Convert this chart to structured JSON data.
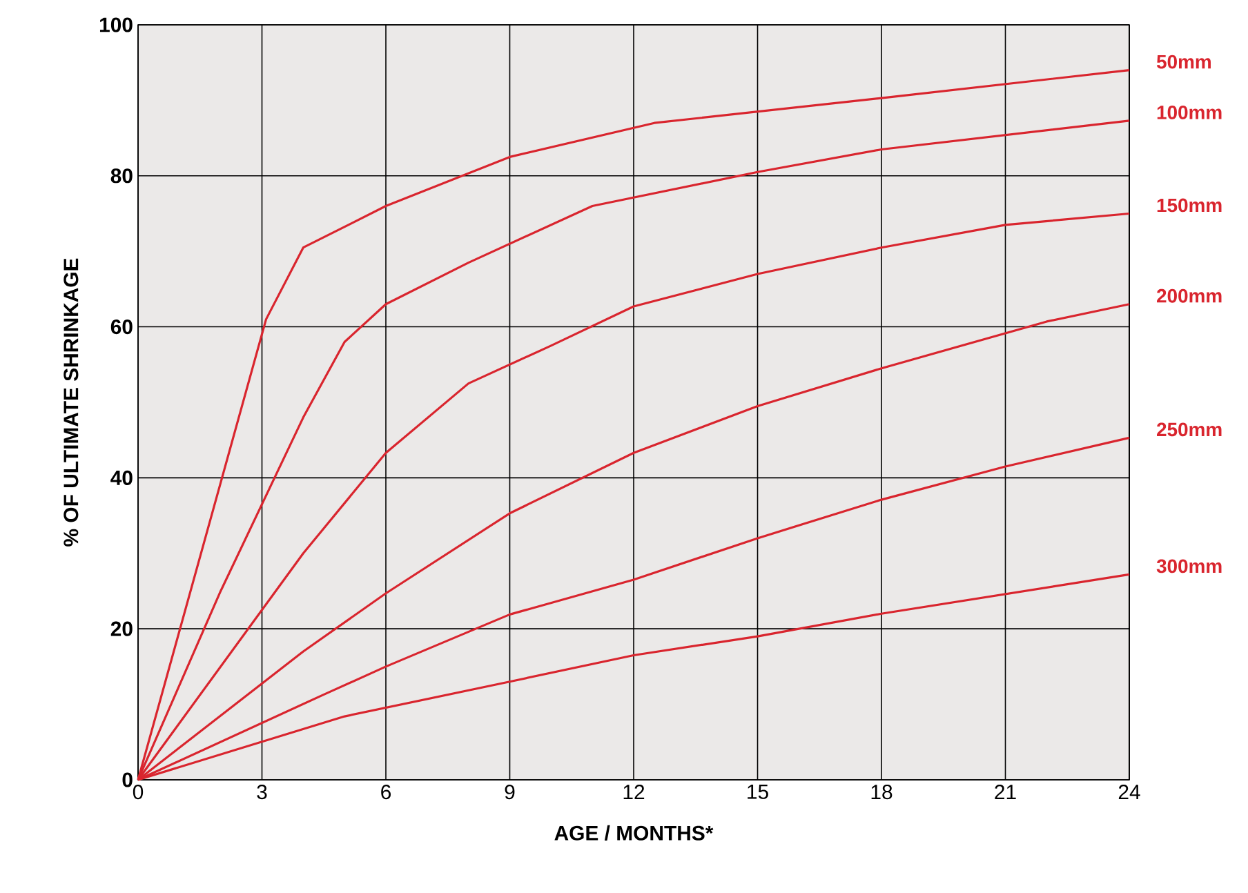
{
  "chart_data": {
    "type": "line",
    "xlabel": "AGE / MONTHS*",
    "ylabel": "% OF ULTIMATE SHRINKAGE",
    "xlim": [
      0,
      24
    ],
    "xticks": [
      0,
      3,
      6,
      9,
      12,
      15,
      18,
      21,
      24
    ],
    "ylim": [
      0,
      100
    ],
    "yticks": [
      0,
      20,
      40,
      60,
      80,
      100
    ],
    "grid": true,
    "series": [
      {
        "name": "50mm",
        "color": "#d9252e",
        "x": [
          0,
          3.1,
          4,
          6,
          9,
          12.5,
          18,
          24
        ],
        "values": [
          0,
          61,
          70.5,
          76,
          82.5,
          87,
          90.3,
          94
        ]
      },
      {
        "name": "100mm",
        "color": "#d9252e",
        "x": [
          0,
          2,
          4,
          5,
          6,
          8,
          11,
          15,
          18,
          24
        ],
        "values": [
          0,
          25,
          48,
          58,
          63,
          68.5,
          76,
          80.5,
          83.5,
          87.3
        ]
      },
      {
        "name": "150mm",
        "color": "#d9252e",
        "x": [
          0,
          4,
          6,
          8,
          10,
          12,
          15,
          18,
          21,
          24
        ],
        "values": [
          0,
          30,
          43.3,
          52.5,
          57.5,
          62.7,
          67,
          70.5,
          73.5,
          75
        ]
      },
      {
        "name": "200mm",
        "color": "#d9252e",
        "x": [
          0,
          4,
          6,
          9,
          12,
          15,
          18,
          22,
          24
        ],
        "values": [
          0,
          17,
          24.7,
          35.3,
          43.3,
          49.5,
          54.5,
          60.7,
          63
        ]
      },
      {
        "name": "250mm",
        "color": "#d9252e",
        "x": [
          0,
          4.5,
          6,
          9,
          12,
          15,
          18,
          21,
          24
        ],
        "values": [
          0,
          11.3,
          15,
          21.9,
          26.5,
          32,
          37.1,
          41.5,
          45.3
        ]
      },
      {
        "name": "300mm",
        "color": "#d9252e",
        "x": [
          0,
          5,
          9,
          12,
          15,
          18,
          24
        ],
        "values": [
          0,
          8.4,
          13,
          16.5,
          19,
          22,
          27.2
        ]
      }
    ]
  }
}
